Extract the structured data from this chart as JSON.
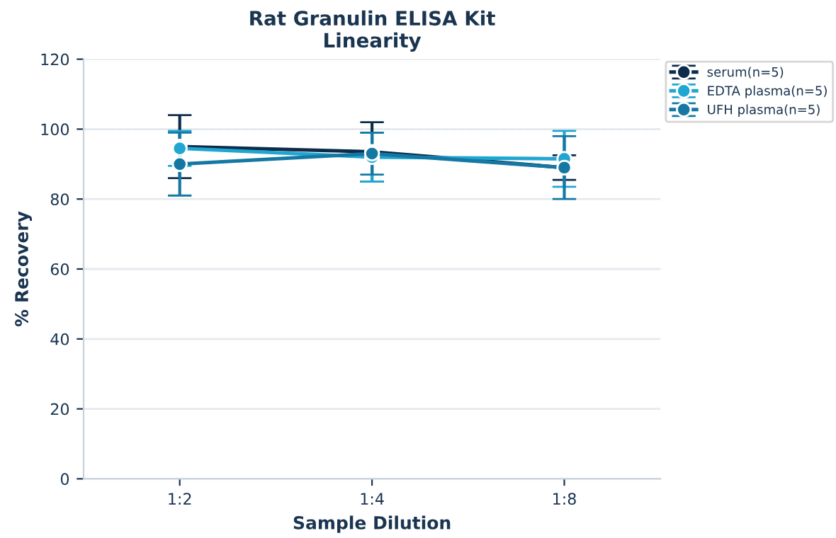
{
  "chart_data": {
    "type": "line",
    "title": "Rat Granulin ELISA Kit\nLinearity",
    "xlabel": "Sample Dilution",
    "ylabel": "% Recovery",
    "categories": [
      "1:2",
      "1:4",
      "1:8"
    ],
    "series": [
      {
        "name": "serum(n=5)",
        "color": "#0d2c4a",
        "values": [
          95,
          93.5,
          89
        ],
        "errors": [
          9,
          8.5,
          3.5
        ]
      },
      {
        "name": "EDTA plasma(n=5)",
        "color": "#21a6d1",
        "values": [
          94.5,
          92,
          91.5
        ],
        "errors": [
          5,
          7,
          8
        ]
      },
      {
        "name": "UFH plasma(n=5)",
        "color": "#1478a3",
        "values": [
          90,
          93,
          89
        ],
        "errors": [
          9,
          6,
          9
        ]
      }
    ],
    "ylim": [
      0,
      120
    ],
    "yticks": [
      0,
      20,
      40,
      60,
      80,
      100,
      120
    ],
    "grid": "y",
    "legend": "top right",
    "marker": "circle",
    "line_style": "solid",
    "ref_lines": [
      {
        "axis": "y",
        "value": 100,
        "label": null,
        "color": "#8ecfe0",
        "line_style": "dashed"
      }
    ]
  }
}
